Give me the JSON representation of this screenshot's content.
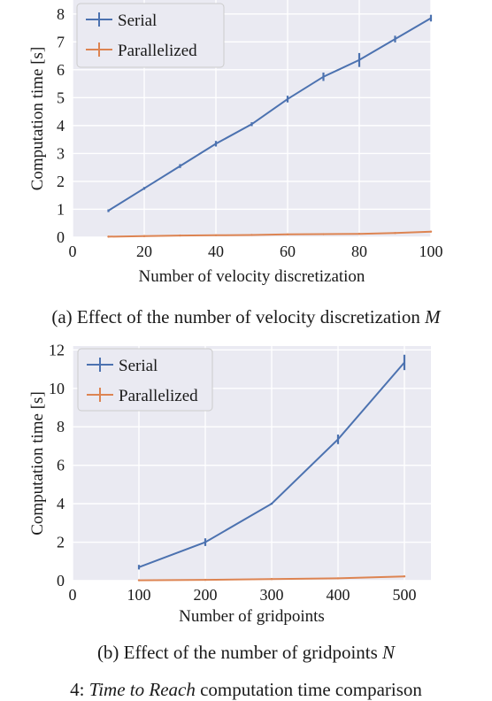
{
  "chart_data": [
    {
      "type": "line",
      "xlabel": "Number of velocity discretization",
      "ylabel": "Computation time [s]",
      "xlim": [
        0,
        100
      ],
      "ylim": [
        0,
        8.5
      ],
      "xticks": [
        0,
        20,
        40,
        60,
        80,
        100
      ],
      "yticks": [
        0,
        1,
        2,
        3,
        4,
        5,
        6,
        7,
        8
      ],
      "grid": true,
      "legend_position": "top-left",
      "x": [
        10,
        20,
        30,
        40,
        50,
        60,
        70,
        80,
        90,
        100
      ],
      "series": [
        {
          "name": "Serial",
          "color": "#4c72b0",
          "values": [
            0.95,
            1.75,
            2.55,
            3.35,
            4.05,
            4.95,
            5.75,
            6.35,
            7.1,
            7.85
          ],
          "errors": [
            0.05,
            0.05,
            0.07,
            0.1,
            0.07,
            0.12,
            0.15,
            0.25,
            0.12,
            0.12
          ]
        },
        {
          "name": "Parallelized",
          "color": "#dd8452",
          "values": [
            0.02,
            0.04,
            0.06,
            0.07,
            0.08,
            0.1,
            0.11,
            0.12,
            0.15,
            0.2
          ],
          "errors": [
            0,
            0,
            0,
            0,
            0,
            0,
            0,
            0,
            0,
            0
          ]
        }
      ],
      "caption_prefix": "(a) Effect of the number of velocity discretization",
      "caption_var": "M"
    },
    {
      "type": "line",
      "xlabel": "Number of gridpoints",
      "ylabel": "Computation time [s]",
      "xlim": [
        0,
        540
      ],
      "ylim": [
        0,
        12.2
      ],
      "xticks": [
        0,
        100,
        200,
        300,
        400,
        500
      ],
      "yticks": [
        0,
        2,
        4,
        6,
        8,
        10,
        12
      ],
      "grid": true,
      "legend_position": "top-left",
      "x": [
        100,
        200,
        300,
        400,
        500
      ],
      "series": [
        {
          "name": "Serial",
          "color": "#4c72b0",
          "values": [
            0.7,
            2.0,
            4.0,
            7.35,
            11.35
          ],
          "errors": [
            0.12,
            0.2,
            0.05,
            0.25,
            0.4
          ]
        },
        {
          "name": "Parallelized",
          "color": "#dd8452",
          "values": [
            0.02,
            0.04,
            0.08,
            0.12,
            0.22
          ],
          "errors": [
            0,
            0,
            0,
            0,
            0
          ]
        }
      ],
      "caption_prefix": "(b) Effect of the number of gridpoints",
      "caption_var": "N"
    }
  ],
  "figure_caption": {
    "prefix": "4:",
    "italic": "Time to Reach",
    "rest": "computation time comparison"
  }
}
